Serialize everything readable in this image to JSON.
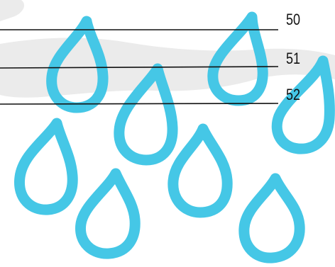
{
  "colors": {
    "drop_stroke": "#45c7e6",
    "background_stain": "#ebebeb",
    "leader_line": "#111111",
    "label_text": "#111111"
  },
  "icon": "raindrop-icon",
  "callouts": [
    {
      "label": "50"
    },
    {
      "label": "51"
    },
    {
      "label": "52"
    }
  ]
}
